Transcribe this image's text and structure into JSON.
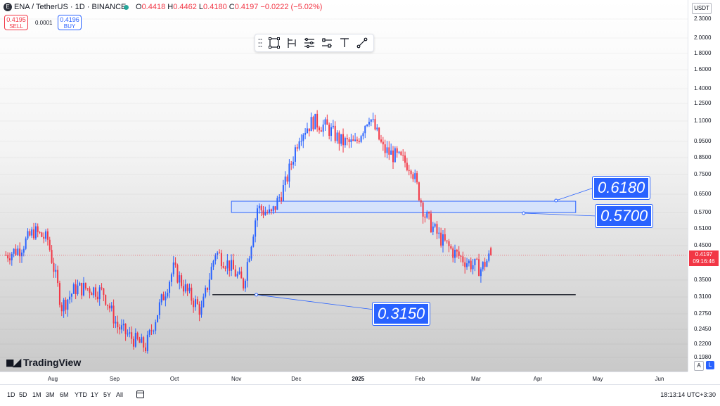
{
  "header": {
    "symbol": "ENA / TetherUS · 1D · BINANCE",
    "logo_letter": "E",
    "ohlc": [
      {
        "label": "O",
        "value": "0.4418"
      },
      {
        "label": "H",
        "value": "0.4462"
      },
      {
        "label": "L",
        "value": "0.4180"
      },
      {
        "label": "C",
        "value": "0.4197"
      }
    ],
    "change": "−0.0222 (−5.02%)",
    "colors": {
      "up": "#2962ff",
      "down": "#f23645"
    }
  },
  "trade": {
    "sell_price": "0.4195",
    "sell_label": "SELL",
    "spread": "0.0001",
    "buy_price": "0.4196",
    "buy_label": "BUY"
  },
  "drawing_toolbar": [
    "grip-icon",
    "rectangle-icon",
    "fib-icon",
    "ruler-icon",
    "measure-icon",
    "text-icon",
    "line-icon"
  ],
  "branding": "TradingView",
  "currency": "USDT",
  "price_ticks": [
    "2.3000",
    "2.0000",
    "1.8000",
    "1.6000",
    "1.4000",
    "1.2500",
    "1.1000",
    "0.9500",
    "0.8500",
    "0.7500",
    "0.6500",
    "0.5700",
    "0.5100",
    "0.4500",
    "0.3500",
    "0.3100",
    "0.2750",
    "0.2450",
    "0.2200",
    "0.1980"
  ],
  "current_price": {
    "price": "0.4197",
    "countdown": "09:16:46"
  },
  "scale_buttons": {
    "auto": "A",
    "log": "L"
  },
  "time_labels": [
    {
      "text": "Aug",
      "bold": false
    },
    {
      "text": "Sep",
      "bold": false
    },
    {
      "text": "Oct",
      "bold": false
    },
    {
      "text": "Nov",
      "bold": false
    },
    {
      "text": "Dec",
      "bold": false
    },
    {
      "text": "2025",
      "bold": true
    },
    {
      "text": "Feb",
      "bold": false
    },
    {
      "text": "Mar",
      "bold": false
    },
    {
      "text": "Apr",
      "bold": false
    },
    {
      "text": "May",
      "bold": false
    },
    {
      "text": "Jun",
      "bold": false
    }
  ],
  "levels": {
    "zone_top": "0.6180",
    "zone_bottom": "0.5700",
    "support": "0.3150"
  },
  "periods": [
    "1D",
    "5D",
    "1M",
    "3M",
    "6M",
    "YTD",
    "1Y",
    "5Y",
    "All"
  ],
  "clock": "18:13:14 UTC+3:30",
  "chart_data": {
    "type": "candlestick",
    "symbol": "ENA/USDT",
    "timeframe": "1D",
    "y_scale": "log",
    "ylim": [
      0.19,
      2.4
    ],
    "x_range": [
      "2024-07-08",
      "2025-06-05"
    ],
    "series": [
      {
        "date": "2024-07-08",
        "close": 0.42
      },
      {
        "date": "2024-07-15",
        "close": 0.44
      },
      {
        "date": "2024-07-22",
        "close": 0.5
      },
      {
        "date": "2024-07-29",
        "close": 0.47
      },
      {
        "date": "2024-08-05",
        "close": 0.29
      },
      {
        "date": "2024-08-12",
        "close": 0.33
      },
      {
        "date": "2024-08-19",
        "close": 0.33
      },
      {
        "date": "2024-08-26",
        "close": 0.32
      },
      {
        "date": "2024-09-02",
        "close": 0.25
      },
      {
        "date": "2024-09-09",
        "close": 0.23
      },
      {
        "date": "2024-09-16",
        "close": 0.215
      },
      {
        "date": "2024-09-23",
        "close": 0.29
      },
      {
        "date": "2024-09-30",
        "close": 0.38
      },
      {
        "date": "2024-10-07",
        "close": 0.32
      },
      {
        "date": "2024-10-14",
        "close": 0.28
      },
      {
        "date": "2024-10-21",
        "close": 0.43
      },
      {
        "date": "2024-10-28",
        "close": 0.39
      },
      {
        "date": "2024-11-04",
        "close": 0.34
      },
      {
        "date": "2024-11-11",
        "close": 0.59
      },
      {
        "date": "2024-11-18",
        "close": 0.56
      },
      {
        "date": "2024-11-25",
        "close": 0.7
      },
      {
        "date": "2024-12-02",
        "close": 1.0
      },
      {
        "date": "2024-12-09",
        "close": 1.1
      },
      {
        "date": "2024-12-16",
        "close": 1.05
      },
      {
        "date": "2024-12-23",
        "close": 0.95
      },
      {
        "date": "2024-12-30",
        "close": 0.93
      },
      {
        "date": "2025-01-06",
        "close": 1.15
      },
      {
        "date": "2025-01-13",
        "close": 0.9
      },
      {
        "date": "2025-01-20",
        "close": 0.85
      },
      {
        "date": "2025-01-27",
        "close": 0.8
      },
      {
        "date": "2025-02-03",
        "close": 0.56
      },
      {
        "date": "2025-02-10",
        "close": 0.48
      },
      {
        "date": "2025-02-17",
        "close": 0.43
      },
      {
        "date": "2025-02-24",
        "close": 0.4
      },
      {
        "date": "2025-03-03",
        "close": 0.38
      },
      {
        "date": "2025-03-08",
        "close": 0.4197
      }
    ]
  }
}
